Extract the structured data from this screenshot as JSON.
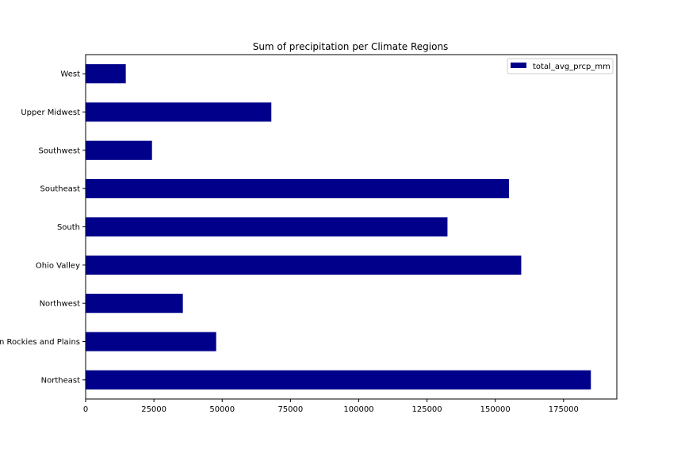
{
  "chart_data": {
    "type": "bar",
    "orientation": "horizontal",
    "title": "Sum of precipitation per Climate Regions",
    "xlabel": "",
    "ylabel": "",
    "categories": [
      "Northeast",
      "n Rockies and Plains",
      "Northwest",
      "Ohio Valley",
      "South",
      "Southeast",
      "Southwest",
      "Upper Midwest",
      "West"
    ],
    "series": [
      {
        "name": "total_avg_prcp_mm",
        "color": "#00008b",
        "values": [
          185000,
          47800,
          35600,
          159500,
          132500,
          155000,
          24300,
          68000,
          14700
        ]
      }
    ],
    "xlim": [
      0,
      194500
    ],
    "xticks": [
      0,
      25000,
      50000,
      75000,
      100000,
      125000,
      150000,
      175000
    ],
    "xtick_labels": [
      "0",
      "25000",
      "50000",
      "75000",
      "100000",
      "125000",
      "150000",
      "175000"
    ],
    "grid": false,
    "legend_position": "top-right"
  }
}
